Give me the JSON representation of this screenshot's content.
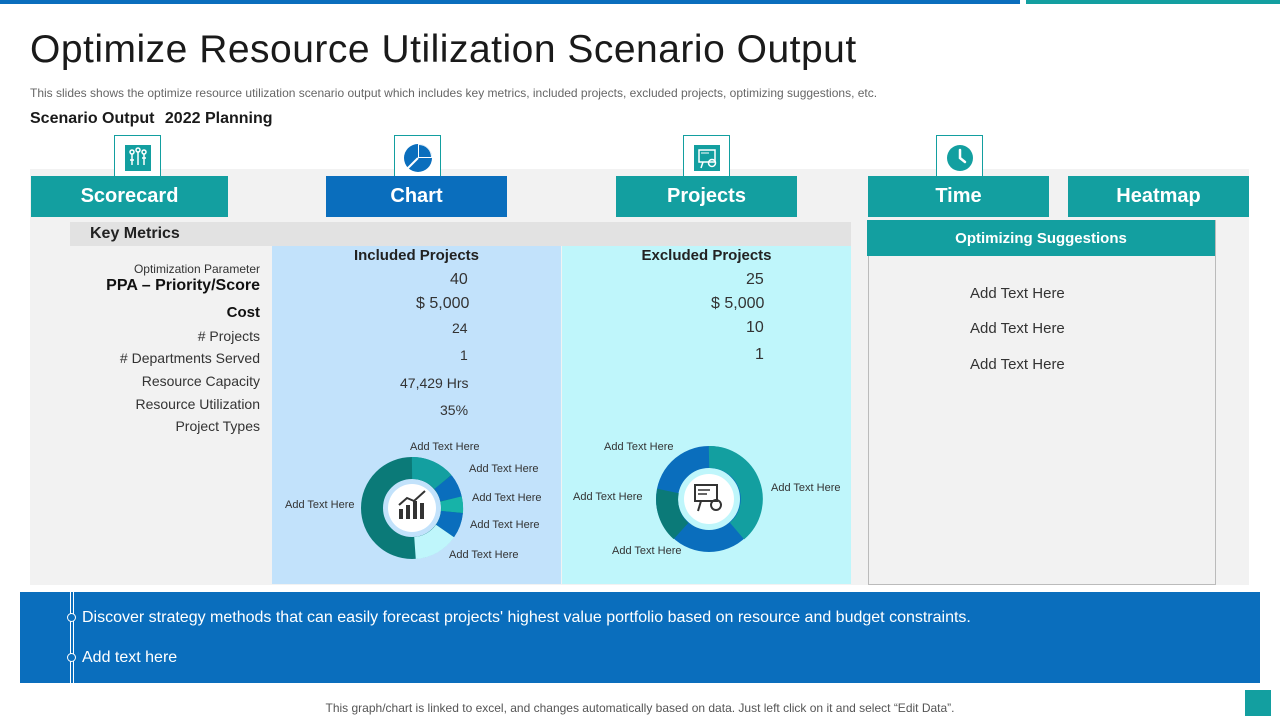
{
  "header": {
    "title": "Optimize Resource Utilization Scenario Output",
    "subtitle": "This slides shows the optimize resource utilization scenario output which includes key metrics, included projects, excluded projects, optimizing suggestions, etc.",
    "scenario_label": "Scenario Output",
    "scenario_value": "2022 Planning"
  },
  "tabs": [
    {
      "label": "Scorecard",
      "icon": "network-icon"
    },
    {
      "label": "Chart",
      "icon": "pie-chart-icon"
    },
    {
      "label": "Projects",
      "icon": "presentation-gear-icon"
    },
    {
      "label": "Time",
      "icon": "clock-icon"
    },
    {
      "label": "Heatmap"
    }
  ],
  "metrics": {
    "header": "Key Metrics",
    "labels": {
      "optimization_parameter": "Optimization Parameter",
      "ppa": "PPA – Priority/Score",
      "cost": "Cost",
      "projects": "# Projects",
      "departments": "# Departments Served",
      "capacity": "Resource Capacity",
      "utilization": "Resource Utilization",
      "types": "Project Types"
    }
  },
  "included": {
    "header": "Included Projects",
    "ppa": "40",
    "cost": "$ 5,000",
    "projects": "24",
    "departments": "1",
    "capacity": "47,429 Hrs",
    "utilization": "35%",
    "donut_labels": [
      "Add Text Here",
      "Add Text Here",
      "Add Text Here",
      "Add Text Here",
      "Add Text Here",
      "Add Text Here"
    ]
  },
  "excluded": {
    "header": "Excluded Projects",
    "ppa": "25",
    "cost": "$ 5,000",
    "projects": "10",
    "departments": "1",
    "donut_labels": [
      "Add Text Here",
      "Add Text Here",
      "Add Text Here",
      "Add Text Here"
    ]
  },
  "suggestions": {
    "header": "Optimizing Suggestions",
    "items": [
      "Add Text Here",
      "Add Text Here",
      "Add Text Here"
    ]
  },
  "bottom": {
    "line1": "Discover strategy methods that can easily forecast projects' highest value portfolio based on resource and budget constraints.",
    "line2": "Add text here"
  },
  "footer": "This graph/chart is linked to excel, and changes automatically based on data. Just left click on it and select “Edit Data”.",
  "colors": {
    "teal": "#139fa0",
    "blue": "#0a6ebd",
    "dark_teal": "#0b7a78",
    "light_cyan": "#bff6fb",
    "light_blue": "#c2e2fb"
  }
}
